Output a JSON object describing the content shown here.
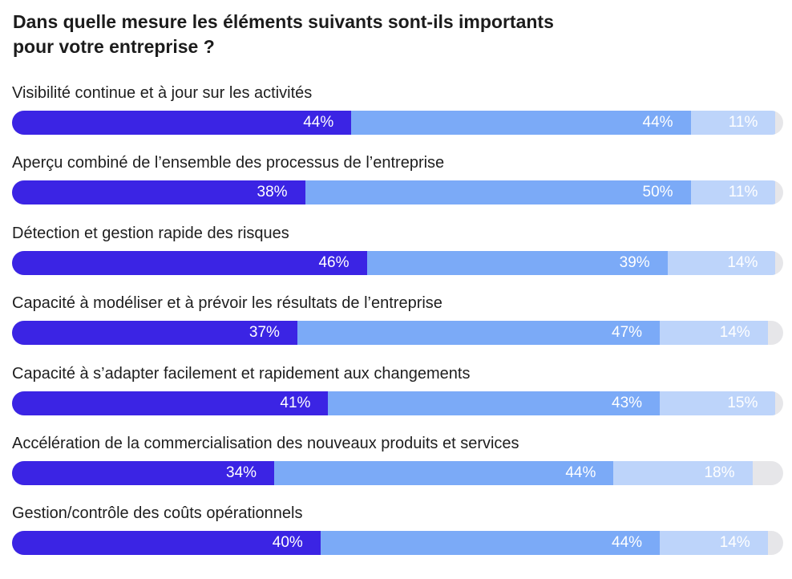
{
  "title_lines": [
    "Dans quelle mesure les éléments suivants sont-ils importants",
    "pour votre entreprise ?"
  ],
  "colors": {
    "segment_1": "#3b24e4",
    "segment_2": "#7baaf7",
    "segment_3": "#bdd4fa",
    "remainder": "#e6e6e9"
  },
  "chart_data": {
    "type": "bar",
    "orientation": "horizontal",
    "stacked": true,
    "title": "Dans quelle mesure les éléments suivants sont-ils importants pour votre entreprise ?",
    "xlim": [
      0,
      100
    ],
    "grid": false,
    "categories": [
      "Visibilité continue et à jour sur les activités",
      "Aperçu combiné de l’ensemble des processus de l’entreprise",
      "Détection et gestion rapide des risques",
      "Capacité à modéliser et à prévoir les résultats de l’entreprise",
      "Capacité à s’adapter facilement et rapidement aux changements",
      "Accélération de la commercialisation des nouveaux produits et services",
      "Gestion/contrôle des coûts opérationnels"
    ],
    "series": [
      {
        "values": [
          44,
          38,
          46,
          37,
          41,
          34,
          40
        ]
      },
      {
        "values": [
          44,
          50,
          39,
          47,
          43,
          44,
          44
        ]
      },
      {
        "values": [
          11,
          11,
          14,
          14,
          15,
          18,
          14
        ]
      }
    ],
    "value_labels": [
      [
        "44%",
        "44%",
        "11%"
      ],
      [
        "38%",
        "50%",
        "11%"
      ],
      [
        "46%",
        "39%",
        "14%"
      ],
      [
        "37%",
        "47%",
        "14%"
      ],
      [
        "41%",
        "43%",
        "15%"
      ],
      [
        "34%",
        "44%",
        "18%"
      ],
      [
        "40%",
        "44%",
        "14%"
      ]
    ]
  }
}
